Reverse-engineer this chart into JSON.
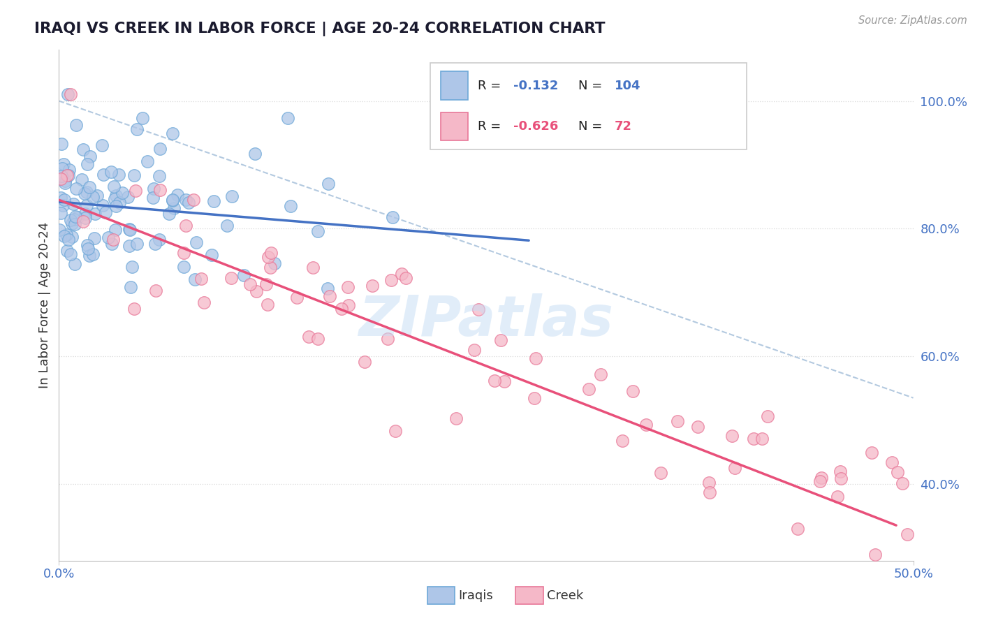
{
  "title": "IRAQI VS CREEK IN LABOR FORCE | AGE 20-24 CORRELATION CHART",
  "source_text": "Source: ZipAtlas.com",
  "ylabel": "In Labor Force | Age 20-24",
  "xlim": [
    0.0,
    0.5
  ],
  "ylim": [
    0.28,
    1.08
  ],
  "ytick_labels": [
    "40.0%",
    "60.0%",
    "80.0%",
    "100.0%"
  ],
  "ytick_positions": [
    0.4,
    0.6,
    0.8,
    1.0
  ],
  "iraqi_color": "#aec6e8",
  "creek_color": "#f5b8c8",
  "iraqi_edge": "#6ea8d8",
  "creek_edge": "#e87898",
  "trend_iraqi_color": "#4472c4",
  "trend_creek_color": "#e8507a",
  "dashed_color": "#a0bcd8",
  "legend_R_iraqi": "-0.132",
  "legend_N_iraqi": "104",
  "legend_R_creek": "-0.626",
  "legend_N_creek": "72",
  "watermark": "ZIPatlas",
  "iraqi_seed": 42,
  "creek_seed": 99,
  "iraqi_intercept": 0.842,
  "iraqi_slope": -0.22,
  "iraqi_noise": 0.065,
  "creek_intercept": 0.845,
  "creek_slope": -1.04,
  "creek_noise": 0.06
}
